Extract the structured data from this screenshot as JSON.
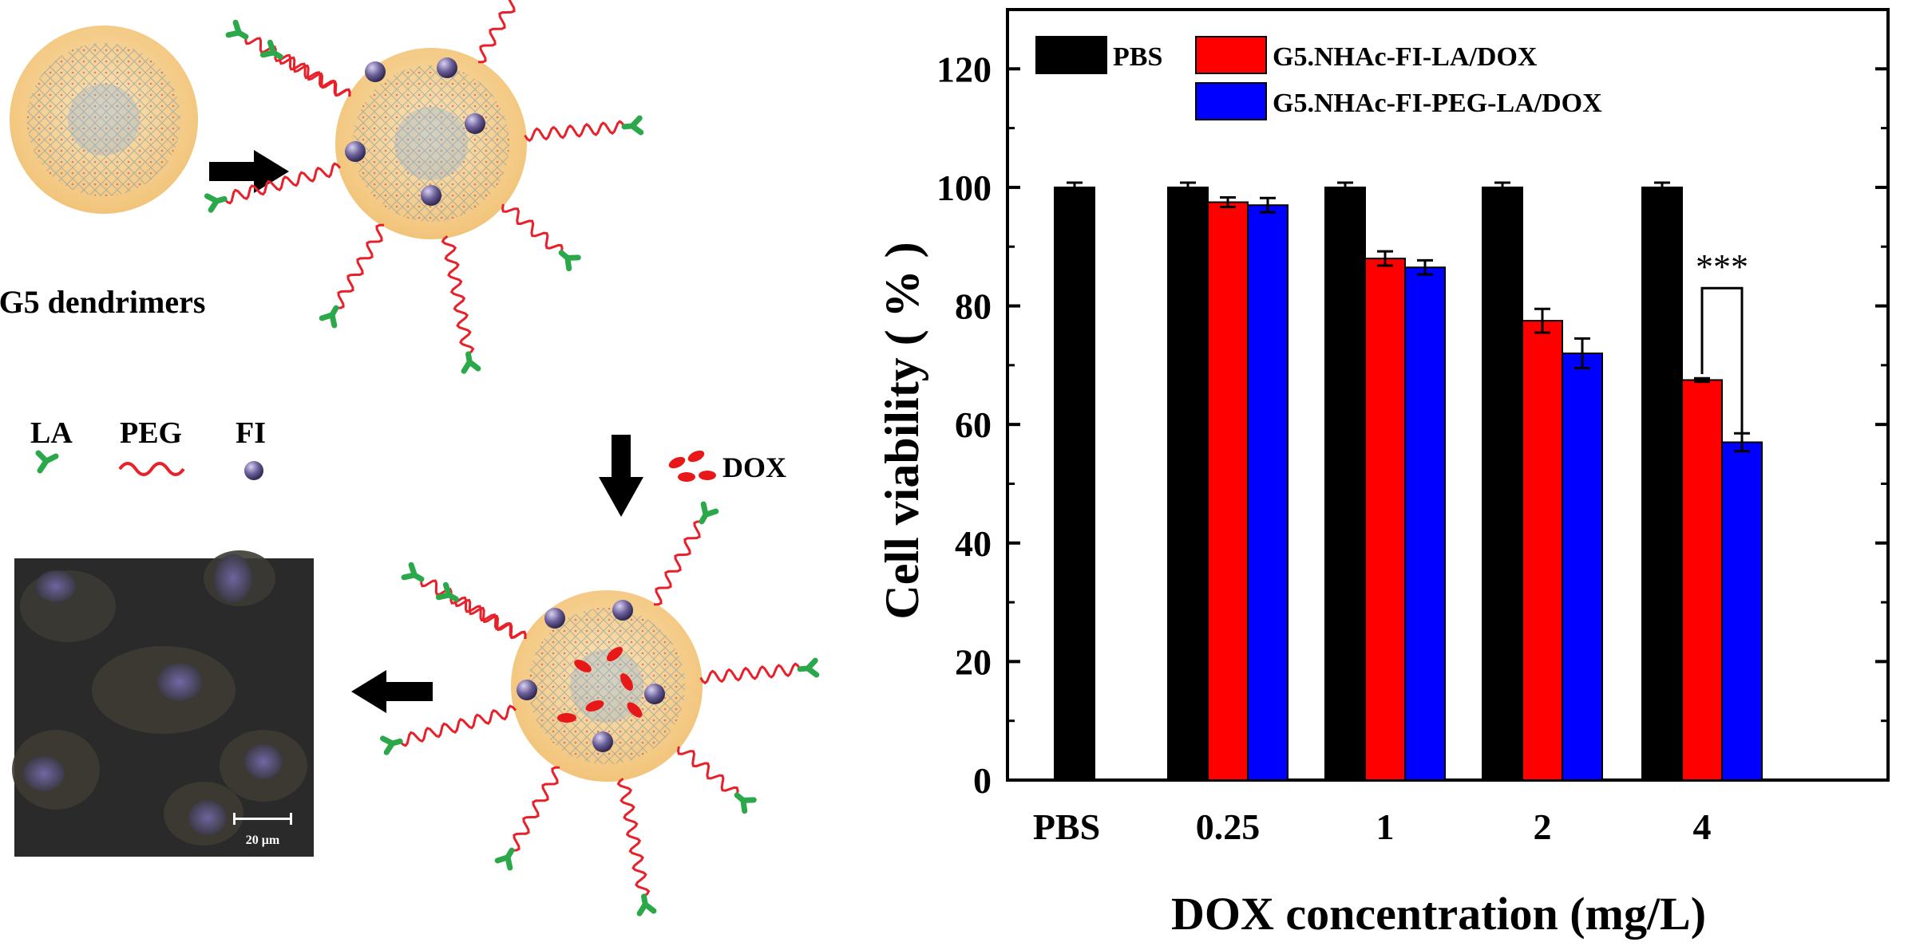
{
  "scheme": {
    "dendrimer_label": "G5 dendrimers",
    "legend": {
      "la": "LA",
      "peg": "PEG",
      "fi": "FI"
    },
    "dox_label": "DOX",
    "scale_bar_label": "20 μm",
    "colors": {
      "core_fill": "#f6cf8e",
      "peg_chain": "#e8202a",
      "la_ligand": "#2aa84a",
      "fi_dye": "#5a4f86",
      "dox_drug": "#e81818",
      "arrow": "#000000"
    },
    "icons": [
      "right-arrow-icon",
      "down-arrow-icon",
      "left-arrow-icon",
      "la-ligand-icon",
      "peg-chain-icon",
      "fi-dye-icon",
      "dox-drug-icon"
    ]
  },
  "chart_data": {
    "type": "bar",
    "title": "",
    "xlabel": "DOX concentration (mg/L)",
    "ylabel": "Cell viability ( % )",
    "ylim": [
      0,
      130
    ],
    "yticks": [
      "0",
      "20",
      "40",
      "60",
      "80",
      "100",
      "120"
    ],
    "categories": [
      "PBS",
      "0.25",
      "1",
      "2",
      "4"
    ],
    "series": [
      {
        "name": "PBS",
        "color": "#000000",
        "values": [
          100,
          100,
          100,
          100,
          100
        ],
        "errors": [
          0.8,
          0.8,
          0.8,
          0.8,
          0.8
        ]
      },
      {
        "name": "G5.NHAc-FI-LA/DOX",
        "color": "#ff0000",
        "values": [
          null,
          97.5,
          88,
          77.5,
          67.5
        ],
        "errors": [
          null,
          0.8,
          1.2,
          2.0,
          0.3
        ]
      },
      {
        "name": "G5.NHAc-FI-PEG-LA/DOX",
        "color": "#0000ff",
        "values": [
          null,
          97,
          86.5,
          72,
          57
        ],
        "errors": [
          null,
          1.2,
          1.2,
          2.5,
          1.5
        ]
      }
    ],
    "annotation": {
      "text": "***",
      "category": "4",
      "between": [
        "G5.NHAc-FI-LA/DOX",
        "G5.NHAc-FI-PEG-LA/DOX"
      ]
    },
    "legend_position": "top-left",
    "grid": false
  }
}
